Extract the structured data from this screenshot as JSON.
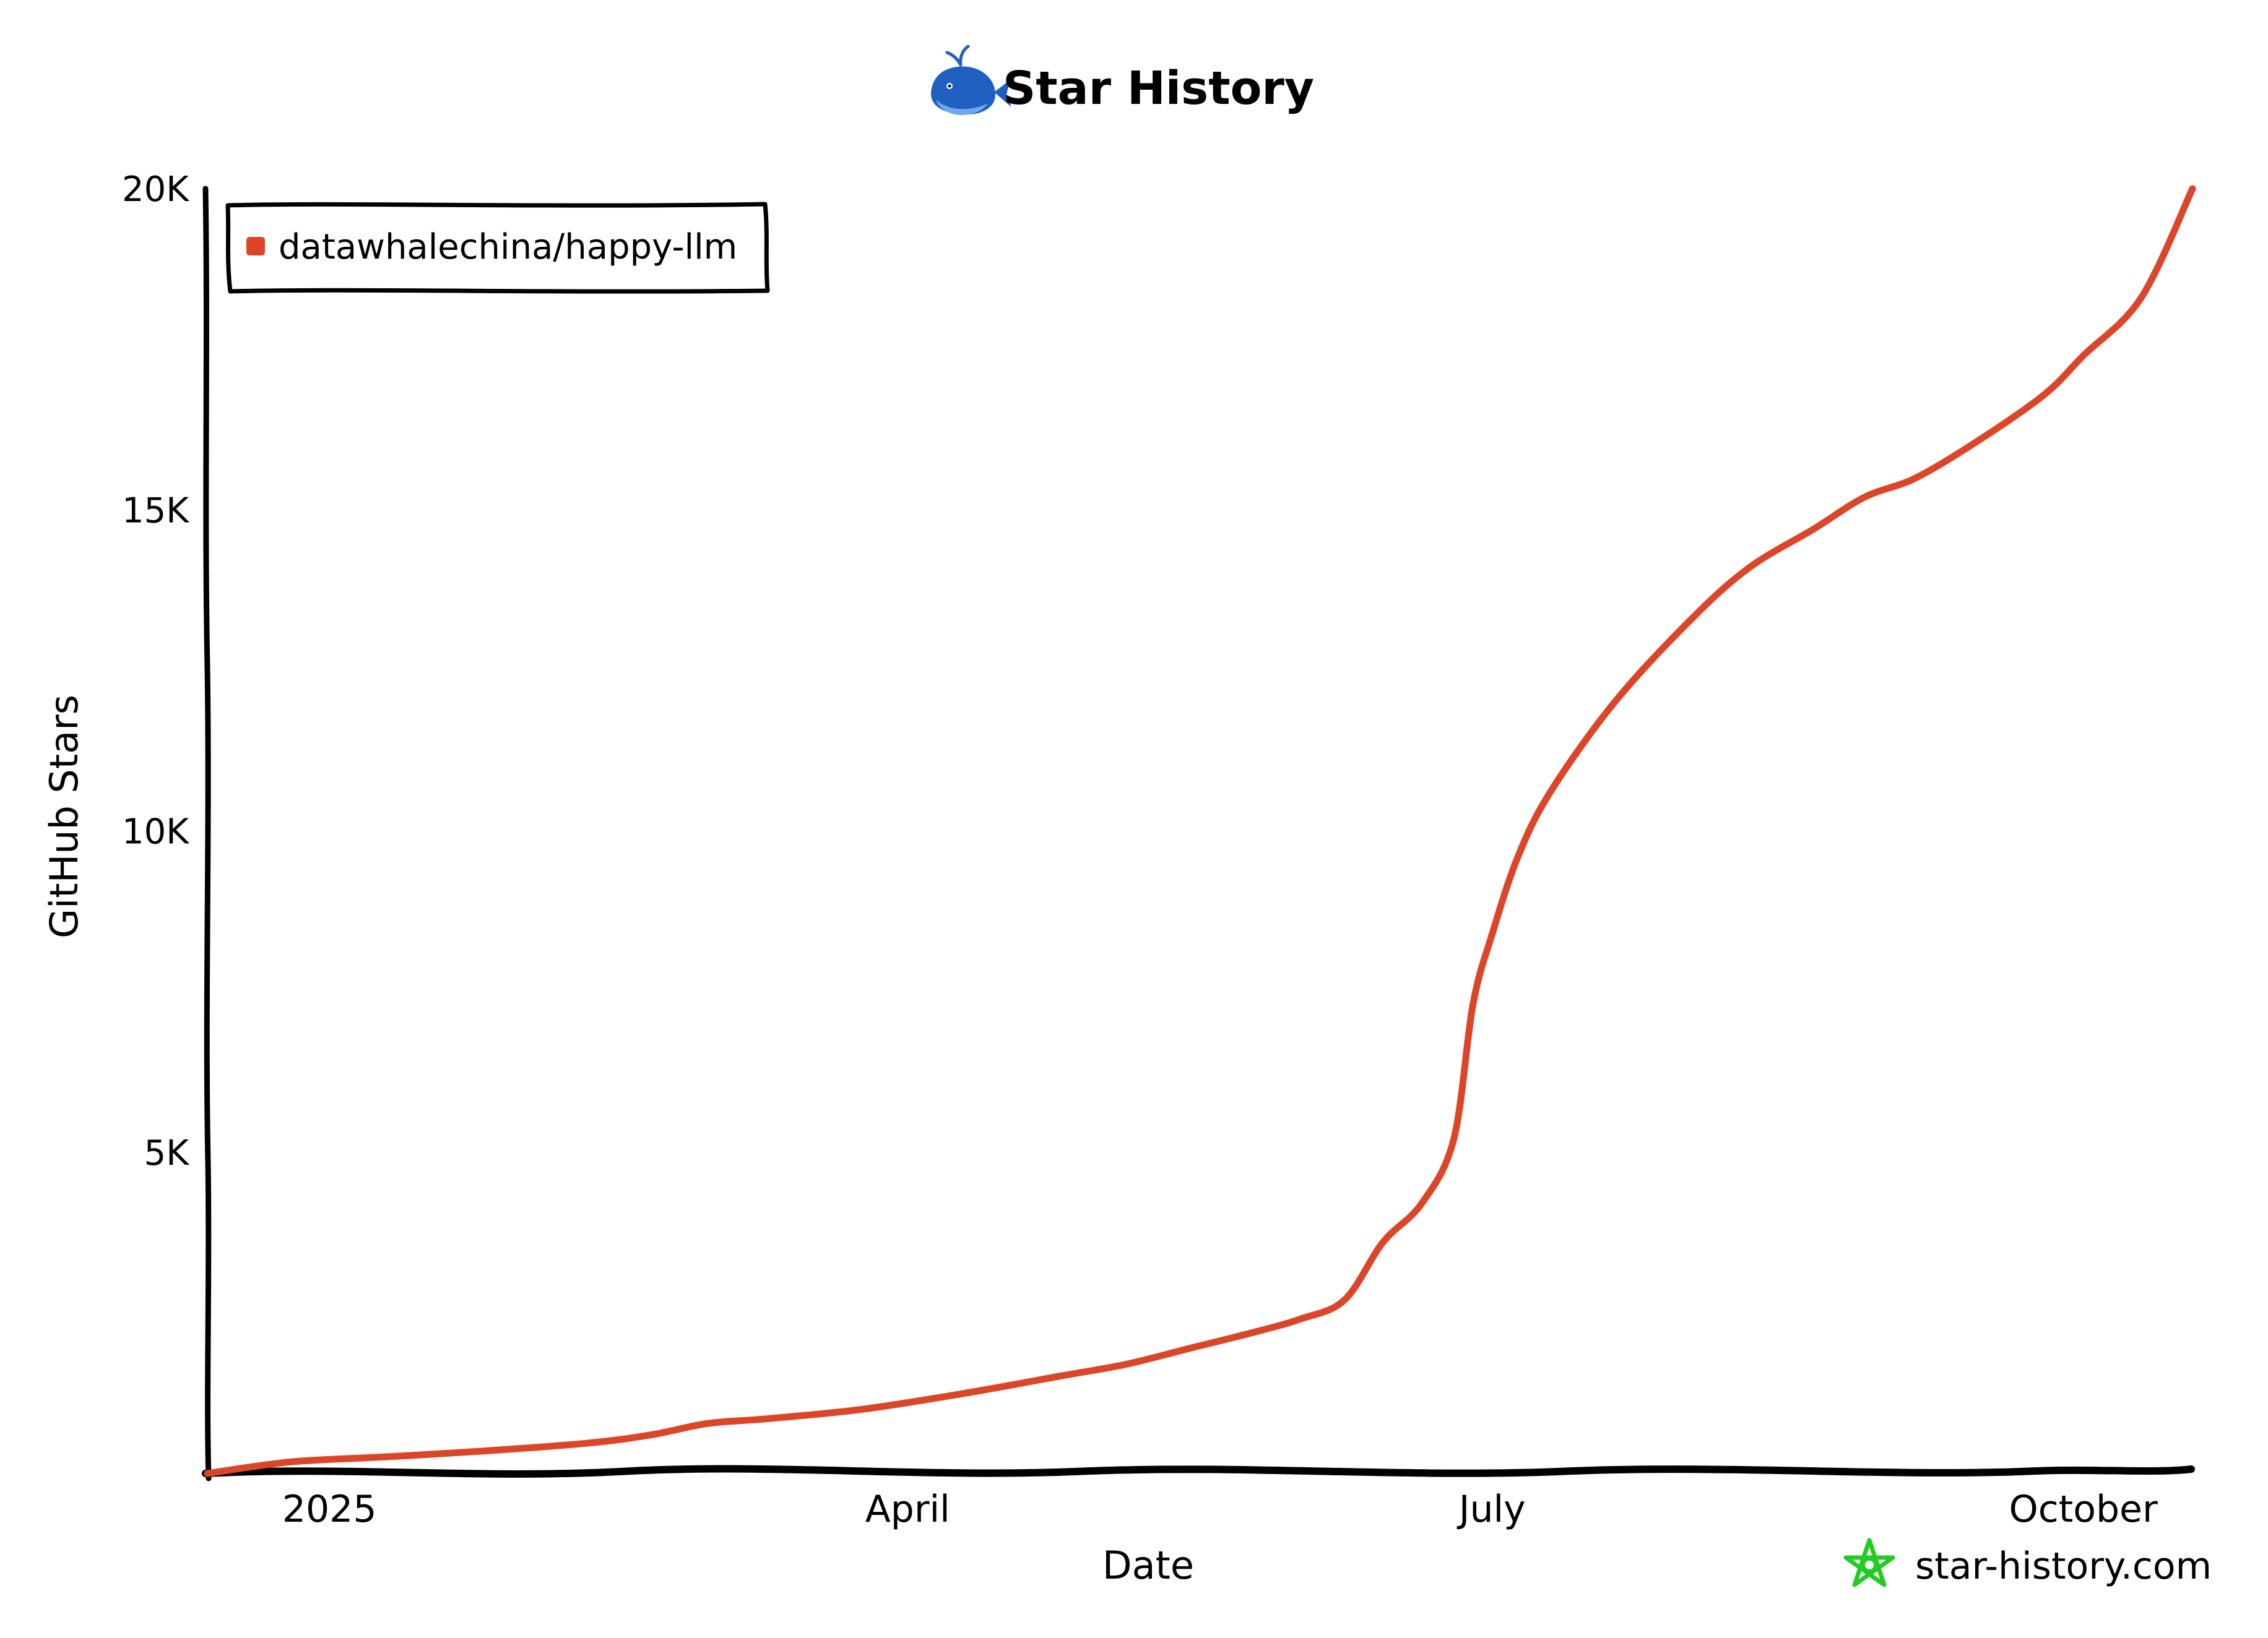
{
  "chart_data": {
    "type": "line",
    "title": "Star History",
    "title_icon": "whale-icon",
    "xlabel": "Date",
    "ylabel": "GitHub Stars",
    "x_tick_labels": [
      {
        "label": "2025",
        "date": "2025-01-01"
      },
      {
        "label": "April",
        "date": "2025-04-01"
      },
      {
        "label": "July",
        "date": "2025-07-01"
      },
      {
        "label": "October",
        "date": "2025-10-01"
      }
    ],
    "y_tick_labels": [
      {
        "label": "5K",
        "value": 5000
      },
      {
        "label": "10K",
        "value": 10000
      },
      {
        "label": "15K",
        "value": 15000
      },
      {
        "label": "20K",
        "value": 20000
      }
    ],
    "xlim": [
      "2024-12-13",
      "2025-10-18"
    ],
    "ylim": [
      0,
      20000
    ],
    "grid": false,
    "legend_position": "top-left",
    "series": [
      {
        "name": "datawhalechina/happy-llm",
        "color": "#dd4528",
        "points": [
          {
            "date": "2024-12-13",
            "stars": 0
          },
          {
            "date": "2024-12-26",
            "stars": 180
          },
          {
            "date": "2025-01-10",
            "stars": 260
          },
          {
            "date": "2025-01-25",
            "stars": 350
          },
          {
            "date": "2025-02-10",
            "stars": 470
          },
          {
            "date": "2025-02-20",
            "stars": 600
          },
          {
            "date": "2025-03-01",
            "stars": 780
          },
          {
            "date": "2025-03-10",
            "stars": 850
          },
          {
            "date": "2025-03-25",
            "stars": 1000
          },
          {
            "date": "2025-04-10",
            "stars": 1250
          },
          {
            "date": "2025-04-25",
            "stars": 1520
          },
          {
            "date": "2025-05-05",
            "stars": 1700
          },
          {
            "date": "2025-05-15",
            "stars": 1950
          },
          {
            "date": "2025-05-25",
            "stars": 2200
          },
          {
            "date": "2025-06-01",
            "stars": 2400
          },
          {
            "date": "2025-06-08",
            "stars": 2700
          },
          {
            "date": "2025-06-14",
            "stars": 3600
          },
          {
            "date": "2025-06-20",
            "stars": 4200
          },
          {
            "date": "2025-06-25",
            "stars": 5200
          },
          {
            "date": "2025-06-28",
            "stars": 7300
          },
          {
            "date": "2025-07-01",
            "stars": 8400
          },
          {
            "date": "2025-07-05",
            "stars": 9600
          },
          {
            "date": "2025-07-10",
            "stars": 10600
          },
          {
            "date": "2025-07-20",
            "stars": 12000
          },
          {
            "date": "2025-08-01",
            "stars": 13300
          },
          {
            "date": "2025-08-10",
            "stars": 14100
          },
          {
            "date": "2025-08-20",
            "stars": 14700
          },
          {
            "date": "2025-08-28",
            "stars": 15200
          },
          {
            "date": "2025-09-05",
            "stars": 15500
          },
          {
            "date": "2025-09-15",
            "stars": 16100
          },
          {
            "date": "2025-09-25",
            "stars": 16800
          },
          {
            "date": "2025-10-01",
            "stars": 17400
          },
          {
            "date": "2025-10-10",
            "stars": 18300
          },
          {
            "date": "2025-10-18",
            "stars": 20000
          }
        ]
      }
    ]
  },
  "watermark": {
    "icon": "star-history-logo-icon",
    "text": "star-history.com",
    "color": "#22cc22"
  }
}
